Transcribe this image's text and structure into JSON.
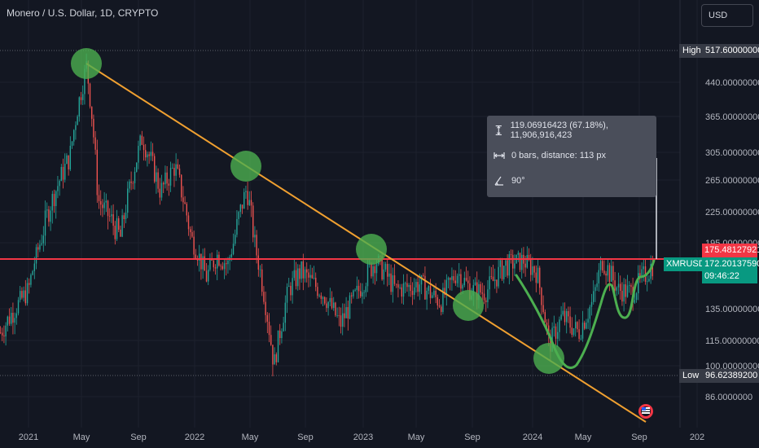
{
  "header": {
    "title": "Monero / U.S. Dollar, 1D, CRYPTO",
    "currency_button": "USD"
  },
  "colors": {
    "background": "#131722",
    "trendline": "#f0a030",
    "resistance": "#f23645",
    "marker": "#4caf50",
    "candle_up": "#26a69a",
    "candle_down": "#ef5350",
    "symbol_tag": "#089981"
  },
  "measure": {
    "price_change": "119.06916423 (67.18%), 11,906,916,423",
    "bars_distance": "0 bars, distance: 113 px",
    "angle": "90°"
  },
  "tags": {
    "high_label": "High",
    "high_value": "517.60000000",
    "low_label": "Low",
    "low_value": "96.62389200",
    "resistance_value": "175.48127921",
    "symbol": "XMRUSD",
    "last_price": "172.20137590",
    "countdown": "09:46:22"
  },
  "chart_data": {
    "type": "candlestick",
    "title": "Monero / U.S. Dollar, 1D, CRYPTO",
    "y_ticks": [
      440,
      365,
      305,
      265,
      225,
      195,
      135,
      115,
      100,
      86
    ],
    "y_tick_labels": [
      "440.00000000",
      "365.00000000",
      "305.00000000",
      "265.00000000",
      "225.00000000",
      "195.00000000",
      "135.00000000",
      "115.00000000",
      "100.00000000",
      "86.0000000"
    ],
    "x_tick_labels": [
      "2021",
      "May",
      "Sep",
      "2022",
      "May",
      "Sep",
      "2023",
      "May",
      "Sep",
      "2024",
      "May",
      "Sep",
      "202"
    ],
    "price_path": [
      {
        "t": "2020-11-01",
        "p": 120
      },
      {
        "t": "2021-01-01",
        "p": 150
      },
      {
        "t": "2021-02-15",
        "p": 230
      },
      {
        "t": "2021-04-01",
        "p": 300
      },
      {
        "t": "2021-05-07",
        "p": 480
      },
      {
        "t": "2021-06-01",
        "p": 240
      },
      {
        "t": "2021-07-20",
        "p": 200
      },
      {
        "t": "2021-09-05",
        "p": 330
      },
      {
        "t": "2021-10-15",
        "p": 250
      },
      {
        "t": "2021-11-15",
        "p": 285
      },
      {
        "t": "2021-12-20",
        "p": 200
      },
      {
        "t": "2022-01-22",
        "p": 160
      },
      {
        "t": "2022-02-15",
        "p": 180
      },
      {
        "t": "2022-03-10",
        "p": 170
      },
      {
        "t": "2022-04-20",
        "p": 255
      },
      {
        "t": "2022-05-10",
        "p": 185
      },
      {
        "t": "2022-06-18",
        "p": 100
      },
      {
        "t": "2022-07-20",
        "p": 150
      },
      {
        "t": "2022-08-15",
        "p": 165
      },
      {
        "t": "2022-10-01",
        "p": 148
      },
      {
        "t": "2022-11-09",
        "p": 125
      },
      {
        "t": "2022-12-20",
        "p": 150
      },
      {
        "t": "2023-01-25",
        "p": 175
      },
      {
        "t": "2023-03-10",
        "p": 150
      },
      {
        "t": "2023-05-01",
        "p": 155
      },
      {
        "t": "2023-06-15",
        "p": 140
      },
      {
        "t": "2023-07-20",
        "p": 165
      },
      {
        "t": "2023-08-20",
        "p": 150
      },
      {
        "t": "2023-09-20",
        "p": 148
      },
      {
        "t": "2023-11-01",
        "p": 170
      },
      {
        "t": "2023-12-10",
        "p": 175
      },
      {
        "t": "2024-01-10",
        "p": 165
      },
      {
        "t": "2024-02-06",
        "p": 112
      },
      {
        "t": "2024-03-05",
        "p": 130
      },
      {
        "t": "2024-04-10",
        "p": 120
      },
      {
        "t": "2024-05-10",
        "p": 140
      },
      {
        "t": "2024-06-01",
        "p": 175
      },
      {
        "t": "2024-07-05",
        "p": 150
      },
      {
        "t": "2024-08-05",
        "p": 148
      },
      {
        "t": "2024-09-20",
        "p": 172
      }
    ],
    "annotations": {
      "resistance_level": 175.48127921,
      "all_time_high": 517.6,
      "range_low": 96.623892,
      "last_price": 172.2013759
    }
  }
}
